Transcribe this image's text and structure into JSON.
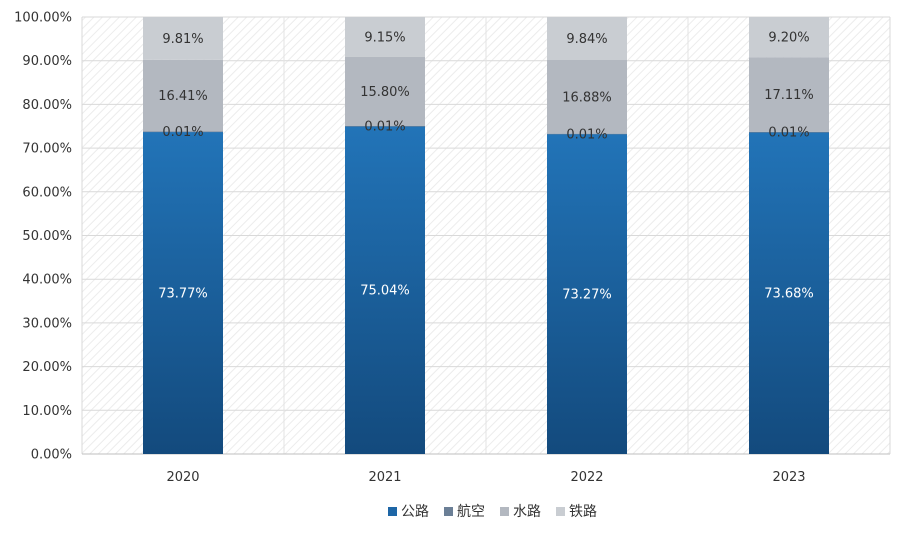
{
  "chart_data": {
    "type": "bar",
    "stacked": true,
    "percent_stacked": true,
    "categories": [
      "2020",
      "2021",
      "2022",
      "2023"
    ],
    "ylim": [
      0,
      100
    ],
    "yticks": [
      "0.00%",
      "10.00%",
      "20.00%",
      "30.00%",
      "40.00%",
      "50.00%",
      "60.00%",
      "70.00%",
      "80.00%",
      "90.00%",
      "100.00%"
    ],
    "grid": true,
    "legend_position": "bottom",
    "series": [
      {
        "name": "公路",
        "values": [
          73.77,
          75.04,
          73.27,
          73.68
        ],
        "labels": [
          "73.77%",
          "75.04%",
          "73.27%",
          "73.68%"
        ],
        "color": "#1e66a6",
        "label_color": "#ffffff"
      },
      {
        "name": "航空",
        "values": [
          0.01,
          0.01,
          0.01,
          0.01
        ],
        "labels": [
          "0.01%",
          "0.01%",
          "0.01%",
          "0.01%"
        ],
        "color": "#6b7f96",
        "label_color": "#333333"
      },
      {
        "name": "水路",
        "values": [
          16.41,
          15.8,
          16.88,
          17.11
        ],
        "labels": [
          "16.41%",
          "15.80%",
          "16.88%",
          "17.11%"
        ],
        "color": "#b3b8c0",
        "label_color": "#333333"
      },
      {
        "name": "铁路",
        "values": [
          9.81,
          9.15,
          9.84,
          9.2
        ],
        "labels": [
          "9.81%",
          "9.15%",
          "9.84%",
          "9.20%"
        ],
        "color": "#c9cdd2",
        "label_color": "#333333"
      }
    ]
  }
}
